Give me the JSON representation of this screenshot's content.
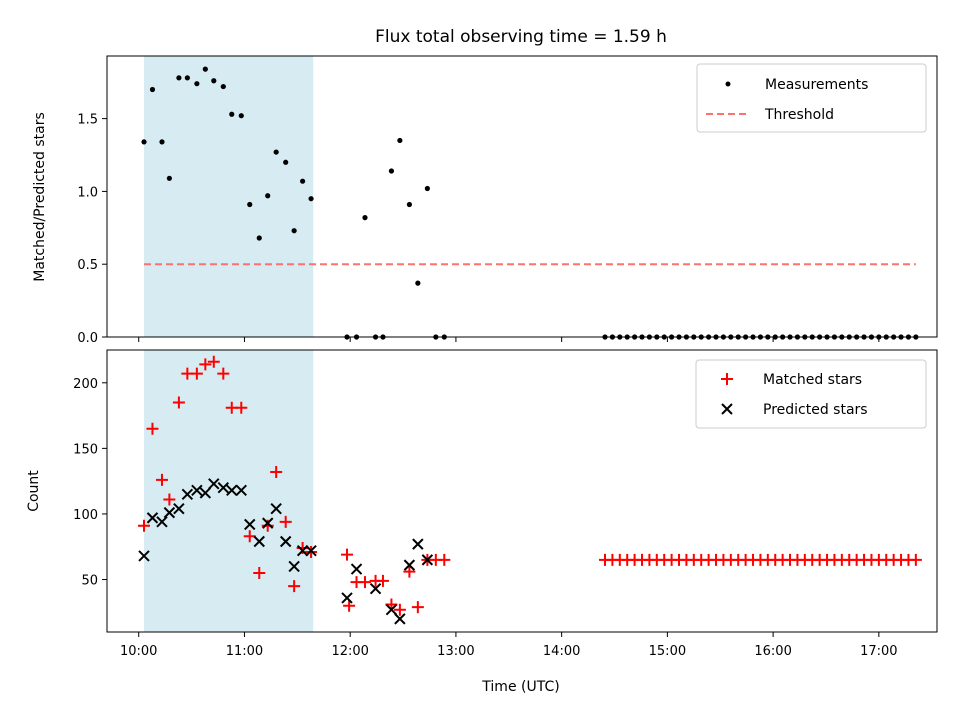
{
  "chart_data": [
    {
      "type": "scatter",
      "title": "Flux total observing time = 1.59 h",
      "ylabel": "Matched/Predicted stars",
      "xlabel": "",
      "xlim_hours": [
        9.7,
        17.55
      ],
      "ylim": [
        0,
        1.93
      ],
      "yticks": [
        0.0,
        0.5,
        1.0,
        1.5
      ],
      "ytick_labels": [
        "0.0",
        "0.5",
        "1.0",
        "1.5"
      ],
      "shaded_region_hours": [
        10.05,
        11.65
      ],
      "legend": [
        {
          "label": "Measurements",
          "marker": "dot"
        },
        {
          "label": "Threshold",
          "marker": "dashed-line"
        }
      ],
      "threshold": {
        "value": 0.5,
        "x_range_hours": [
          10.05,
          17.35
        ],
        "color": "#ff7070"
      },
      "measurements": {
        "color": "#000000",
        "x_hours": [
          10.05,
          10.13,
          10.22,
          10.29,
          10.38,
          10.46,
          10.55,
          10.63,
          10.71,
          10.8,
          10.88,
          10.97,
          11.05,
          11.14,
          11.22,
          11.3,
          11.39,
          11.47,
          11.55,
          11.63,
          11.97,
          12.06,
          12.14,
          12.24,
          12.31,
          12.39,
          12.47,
          12.56,
          12.64,
          12.73,
          12.81,
          12.89,
          14.41,
          14.48,
          14.55,
          14.62,
          14.69,
          14.76,
          14.83,
          14.9,
          14.97,
          15.04,
          15.11,
          15.18,
          15.25,
          15.32,
          15.39,
          15.46,
          15.53,
          15.6,
          15.67,
          15.74,
          15.81,
          15.88,
          15.95,
          16.02,
          16.09,
          16.16,
          16.23,
          16.3,
          16.37,
          16.44,
          16.51,
          16.58,
          16.65,
          16.72,
          16.79,
          16.86,
          16.93,
          17.0,
          17.07,
          17.14,
          17.21,
          17.28,
          17.35
        ],
        "y": [
          1.34,
          1.7,
          1.34,
          1.09,
          1.78,
          1.78,
          1.74,
          1.84,
          1.76,
          1.72,
          1.53,
          1.52,
          0.91,
          0.68,
          0.97,
          1.27,
          1.2,
          0.73,
          1.07,
          0.95,
          0.0,
          0.0,
          0.82,
          0.0,
          0.0,
          1.14,
          1.35,
          0.91,
          0.37,
          1.02,
          0.0,
          0.0,
          0,
          0,
          0,
          0,
          0,
          0,
          0,
          0,
          0,
          0,
          0,
          0,
          0,
          0,
          0,
          0,
          0,
          0,
          0,
          0,
          0,
          0,
          0,
          0,
          0,
          0,
          0,
          0,
          0,
          0,
          0,
          0,
          0,
          0,
          0,
          0,
          0,
          0,
          0,
          0,
          0,
          0,
          0
        ],
        "y_override_note": ""
      }
    },
    {
      "type": "scatter",
      "title": "",
      "ylabel": "Count",
      "xlabel": "Time (UTC)",
      "xlim_hours": [
        9.7,
        17.55
      ],
      "ylim": [
        10,
        225
      ],
      "yticks": [
        50,
        100,
        150,
        200
      ],
      "ytick_labels": [
        "50",
        "100",
        "150",
        "200"
      ],
      "xticks_hours": [
        10,
        11,
        12,
        13,
        14,
        15,
        16,
        17
      ],
      "xtick_labels": [
        "10:00",
        "11:00",
        "12:00",
        "13:00",
        "14:00",
        "15:00",
        "16:00",
        "17:00"
      ],
      "shaded_region_hours": [
        10.05,
        11.65
      ],
      "legend": [
        {
          "label": "Matched stars",
          "marker": "plus",
          "color": "#ff0000"
        },
        {
          "label": "Predicted stars",
          "marker": "x",
          "color": "#000000"
        }
      ],
      "matched": {
        "x_hours": [
          10.05,
          10.13,
          10.22,
          10.29,
          10.38,
          10.46,
          10.55,
          10.63,
          10.71,
          10.8,
          10.88,
          10.97,
          11.05,
          11.14,
          11.22,
          11.3,
          11.39,
          11.47,
          11.55,
          11.63,
          11.97,
          11.99,
          12.06,
          12.14,
          12.24,
          12.31,
          12.39,
          12.47,
          12.56,
          12.64,
          12.73,
          12.81,
          12.89,
          14.41,
          14.48,
          14.55,
          14.62,
          14.69,
          14.76,
          14.83,
          14.9,
          14.97,
          15.04,
          15.11,
          15.18,
          15.25,
          15.32,
          15.39,
          15.46,
          15.53,
          15.6,
          15.67,
          15.74,
          15.81,
          15.88,
          15.95,
          16.02,
          16.09,
          16.16,
          16.23,
          16.3,
          16.37,
          16.44,
          16.51,
          16.58,
          16.65,
          16.72,
          16.79,
          16.86,
          16.93,
          17.0,
          17.07,
          17.14,
          17.21,
          17.28,
          17.35
        ],
        "y": [
          91,
          165,
          126,
          111,
          185,
          207,
          207,
          214,
          216,
          207,
          181,
          181,
          83,
          55,
          91,
          132,
          94,
          45,
          74,
          71,
          69,
          30,
          48,
          48,
          49,
          49,
          31,
          27,
          56,
          29,
          65,
          65,
          65,
          65,
          65,
          65,
          65,
          65,
          65,
          65,
          65,
          65,
          65,
          65,
          65,
          65,
          65,
          65,
          65,
          65,
          65,
          65,
          65,
          65,
          65,
          65,
          65,
          65,
          65,
          65,
          65,
          65,
          65,
          65,
          65,
          65,
          65,
          65,
          65,
          65,
          65,
          65,
          65,
          65,
          65,
          65
        ]
      },
      "predicted": {
        "x_hours": [
          10.05,
          10.13,
          10.22,
          10.29,
          10.38,
          10.46,
          10.55,
          10.63,
          10.71,
          10.8,
          10.88,
          10.97,
          11.05,
          11.14,
          11.22,
          11.3,
          11.39,
          11.47,
          11.55,
          11.63,
          11.97,
          12.06,
          12.24,
          12.39,
          12.47,
          12.56,
          12.64,
          12.73
        ],
        "y": [
          68,
          97,
          94,
          101,
          104,
          115,
          118,
          116,
          123,
          120,
          118,
          118,
          92,
          79,
          93,
          104,
          79,
          60,
          72,
          72,
          36,
          58,
          43,
          27,
          20,
          61,
          77,
          65
        ]
      }
    }
  ]
}
